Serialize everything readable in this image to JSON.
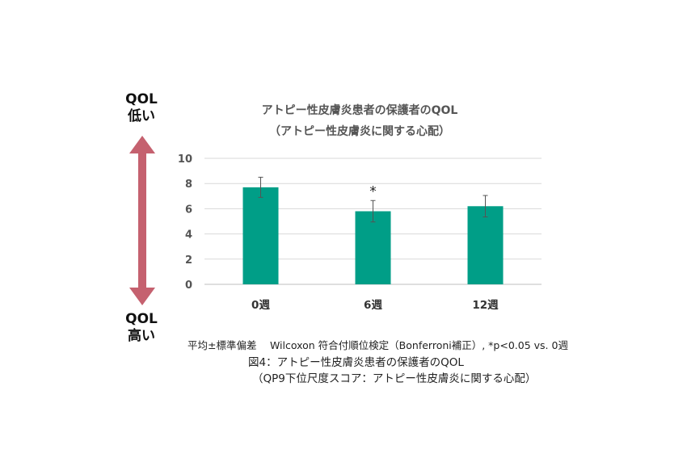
{
  "left_axis": {
    "top_label_line1": "QOL",
    "top_label_line2": "低い",
    "bottom_label_line1": "QOL",
    "bottom_label_line2": "高い",
    "arrow_color": "#c5616f"
  },
  "chart_data": {
    "type": "bar",
    "title": "アトピー性皮膚炎患者の保護者のQOL",
    "subtitle": "（アトピー性皮膚炎に関する心配）",
    "categories": [
      "0週",
      "6週",
      "12週"
    ],
    "values": [
      7.7,
      5.8,
      6.2
    ],
    "error": [
      0.8,
      0.85,
      0.85
    ],
    "annotations": [
      "",
      "*",
      ""
    ],
    "ylim": [
      0,
      10
    ],
    "yticks": [
      0,
      2,
      4,
      6,
      8,
      10
    ],
    "grid": true,
    "bar_color": "#009e87"
  },
  "footnote": {
    "stats_line": "平均±標準偏差　 Wilcoxon 符合付順位検定（Bonferroni補正）, *p<0.05 vs. 0週",
    "caption_line1": "図4：アトピー性皮膚炎患者の保護者のQOL",
    "caption_line2": "（QP9下位尺度スコア：アトピー性皮膚炎に関する心配）"
  }
}
